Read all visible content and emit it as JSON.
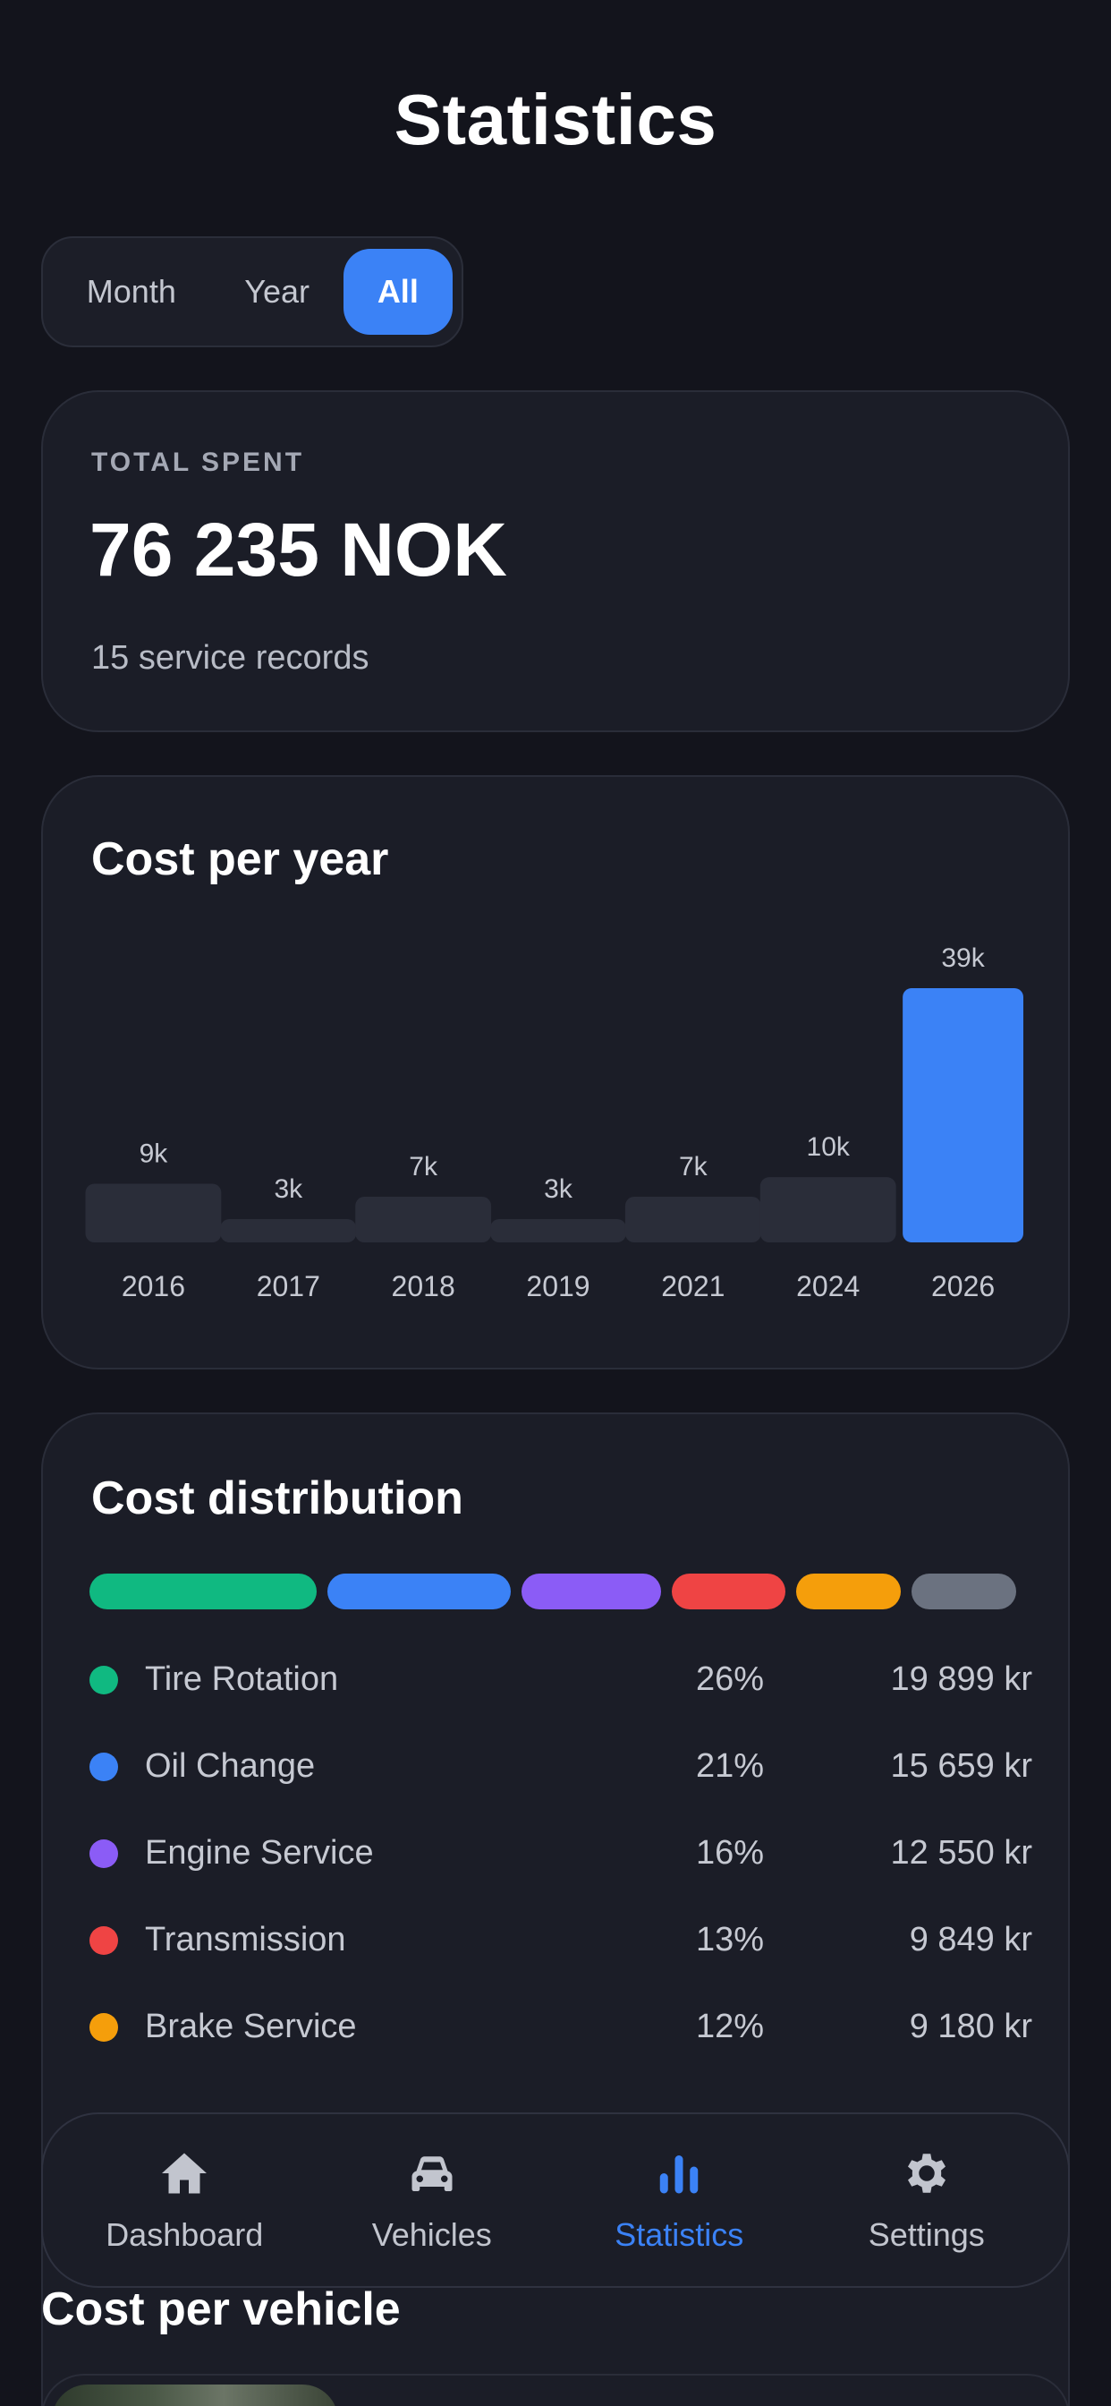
{
  "header": {
    "title": "Statistics"
  },
  "period_selector": {
    "options": [
      "Month",
      "Year",
      "All"
    ],
    "selected": "All"
  },
  "total": {
    "label": "TOTAL SPENT",
    "value": "76 235 NOK",
    "records": "15 service records"
  },
  "cost_per_year": {
    "title": "Cost per year",
    "chart_data": {
      "type": "bar",
      "categories": [
        "2016",
        "2017",
        "2018",
        "2019",
        "2021",
        "2024",
        "2026"
      ],
      "values": [
        9,
        3,
        7,
        3,
        7,
        10,
        39
      ],
      "value_labels": [
        "9k",
        "3k",
        "7k",
        "3k",
        "7k",
        "10k",
        "39k"
      ],
      "highlighted_category": "2026",
      "colors": {
        "bar": "#2a2d39",
        "highlight": "#3b82f6",
        "label": "#c6c9d2"
      }
    }
  },
  "cost_distribution": {
    "title": "Cost distribution",
    "items": [
      {
        "name": "Tire Rotation",
        "percent": "26%",
        "amount": "19 899 kr",
        "color": "#10b981",
        "share": 26
      },
      {
        "name": "Oil Change",
        "percent": "21%",
        "amount": "15 659 kr",
        "color": "#3b82f6",
        "share": 21
      },
      {
        "name": "Engine Service",
        "percent": "16%",
        "amount": "12 550 kr",
        "color": "#8b5cf6",
        "share": 16
      },
      {
        "name": "Transmission",
        "percent": "13%",
        "amount": "9 849 kr",
        "color": "#ef4444",
        "share": 13
      },
      {
        "name": "Brake Service",
        "percent": "12%",
        "amount": "9 180 kr",
        "color": "#f59e0b",
        "share": 12
      }
    ],
    "other_color": "#6b7280",
    "other_share": 12
  },
  "tabbar": {
    "items": [
      {
        "label": "Dashboard",
        "icon": "home-icon"
      },
      {
        "label": "Vehicles",
        "icon": "car-icon"
      },
      {
        "label": "Statistics",
        "icon": "bar-chart-icon"
      },
      {
        "label": "Settings",
        "icon": "gear-icon"
      }
    ],
    "active": "Statistics"
  },
  "cost_per_vehicle": {
    "title": "Cost per vehicle"
  }
}
